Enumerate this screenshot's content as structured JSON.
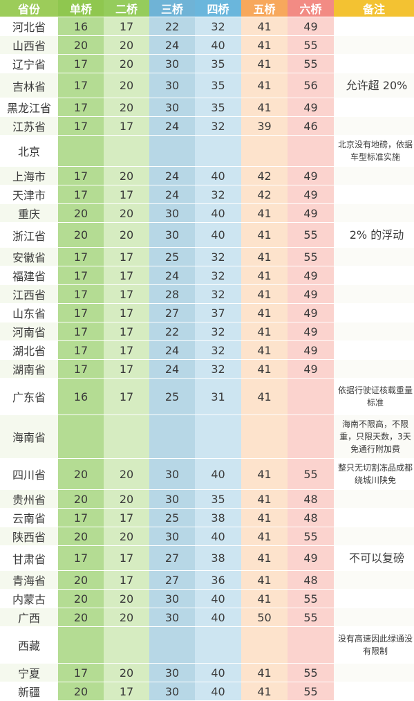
{
  "headers": [
    "省份",
    "单桥",
    "二桥",
    "三桥",
    "四桥",
    "五桥",
    "六桥",
    "备注"
  ],
  "header_colors": [
    "#9ccc5a",
    "#8fc74f",
    "#95cc5c",
    "#6fb3d6",
    "#6ab6dc",
    "#f7a85c",
    "#f28b84",
    "#f3c232"
  ],
  "rows": [
    {
      "province": "河北省",
      "v": [
        "16",
        "17",
        "22",
        "32",
        "41",
        "49"
      ],
      "note": ""
    },
    {
      "province": "山西省",
      "v": [
        "20",
        "20",
        "24",
        "40",
        "41",
        "55"
      ],
      "note": ""
    },
    {
      "province": "辽宁省",
      "v": [
        "17",
        "20",
        "30",
        "35",
        "41",
        "55"
      ],
      "note": ""
    },
    {
      "province": "吉林省",
      "v": [
        "17",
        "20",
        "30",
        "35",
        "41",
        "56"
      ],
      "note": "允许超 20%"
    },
    {
      "province": "黑龙江省",
      "v": [
        "17",
        "20",
        "30",
        "35",
        "41",
        "49"
      ],
      "note": ""
    },
    {
      "province": "江苏省",
      "v": [
        "17",
        "17",
        "24",
        "32",
        "39",
        "46"
      ],
      "note": ""
    },
    {
      "province": "北京",
      "v": [
        "",
        "",
        "",
        "",
        "",
        ""
      ],
      "note": "北京没有地磅，依据车型标准实施"
    },
    {
      "province": "上海市",
      "v": [
        "17",
        "20",
        "24",
        "40",
        "42",
        "49"
      ],
      "note": ""
    },
    {
      "province": "天津市",
      "v": [
        "17",
        "17",
        "24",
        "32",
        "42",
        "49"
      ],
      "note": ""
    },
    {
      "province": "重庆",
      "v": [
        "20",
        "20",
        "30",
        "40",
        "41",
        "49"
      ],
      "note": ""
    },
    {
      "province": "浙江省",
      "v": [
        "20",
        "20",
        "30",
        "40",
        "41",
        "55"
      ],
      "note": "2% 的浮动"
    },
    {
      "province": "安徽省",
      "v": [
        "17",
        "17",
        "25",
        "32",
        "41",
        "55"
      ],
      "note": ""
    },
    {
      "province": "福建省",
      "v": [
        "17",
        "17",
        "24",
        "32",
        "41",
        "49"
      ],
      "note": ""
    },
    {
      "province": "江西省",
      "v": [
        "17",
        "17",
        "28",
        "32",
        "41",
        "49"
      ],
      "note": ""
    },
    {
      "province": "山东省",
      "v": [
        "17",
        "17",
        "27",
        "37",
        "41",
        "49"
      ],
      "note": ""
    },
    {
      "province": "河南省",
      "v": [
        "17",
        "17",
        "22",
        "32",
        "41",
        "49"
      ],
      "note": ""
    },
    {
      "province": "湖北省",
      "v": [
        "17",
        "17",
        "24",
        "32",
        "41",
        "49"
      ],
      "note": ""
    },
    {
      "province": "湖南省",
      "v": [
        "17",
        "17",
        "24",
        "32",
        "41",
        "49"
      ],
      "note": ""
    },
    {
      "province": "广东省",
      "v": [
        "16",
        "17",
        "25",
        "31",
        "41",
        ""
      ],
      "note": "依据行驶证核载重量标准"
    },
    {
      "province": "海南省",
      "v": [
        "",
        "",
        "",
        "",
        "",
        ""
      ],
      "note": "海南不限高，不限重，只限天数，3天免通行附加费"
    },
    {
      "province": "四川省",
      "v": [
        "20",
        "20",
        "30",
        "40",
        "41",
        "55"
      ],
      "note": "整只无切割冻品成都绕城川陕免"
    },
    {
      "province": "贵州省",
      "v": [
        "20",
        "20",
        "30",
        "35",
        "41",
        "48"
      ],
      "note": ""
    },
    {
      "province": "云南省",
      "v": [
        "17",
        "17",
        "25",
        "38",
        "41",
        "48"
      ],
      "note": ""
    },
    {
      "province": "陕西省",
      "v": [
        "20",
        "20",
        "30",
        "40",
        "41",
        "55"
      ],
      "note": ""
    },
    {
      "province": "甘肃省",
      "v": [
        "17",
        "17",
        "27",
        "38",
        "41",
        "49"
      ],
      "note": "不可以复磅"
    },
    {
      "province": "青海省",
      "v": [
        "20",
        "17",
        "27",
        "36",
        "41",
        "48"
      ],
      "note": ""
    },
    {
      "province": "内蒙古",
      "v": [
        "20",
        "20",
        "30",
        "40",
        "41",
        "55"
      ],
      "note": ""
    },
    {
      "province": "广西",
      "v": [
        "20",
        "20",
        "30",
        "40",
        "50",
        "55"
      ],
      "note": ""
    },
    {
      "province": "西藏",
      "v": [
        "",
        "",
        "",
        "",
        "",
        ""
      ],
      "note": "没有高速因此绿通没有限制"
    },
    {
      "province": "宁夏",
      "v": [
        "17",
        "20",
        "30",
        "40",
        "41",
        "55"
      ],
      "note": ""
    },
    {
      "province": "新疆",
      "v": [
        "20",
        "17",
        "30",
        "40",
        "41",
        "55"
      ],
      "note": ""
    }
  ]
}
